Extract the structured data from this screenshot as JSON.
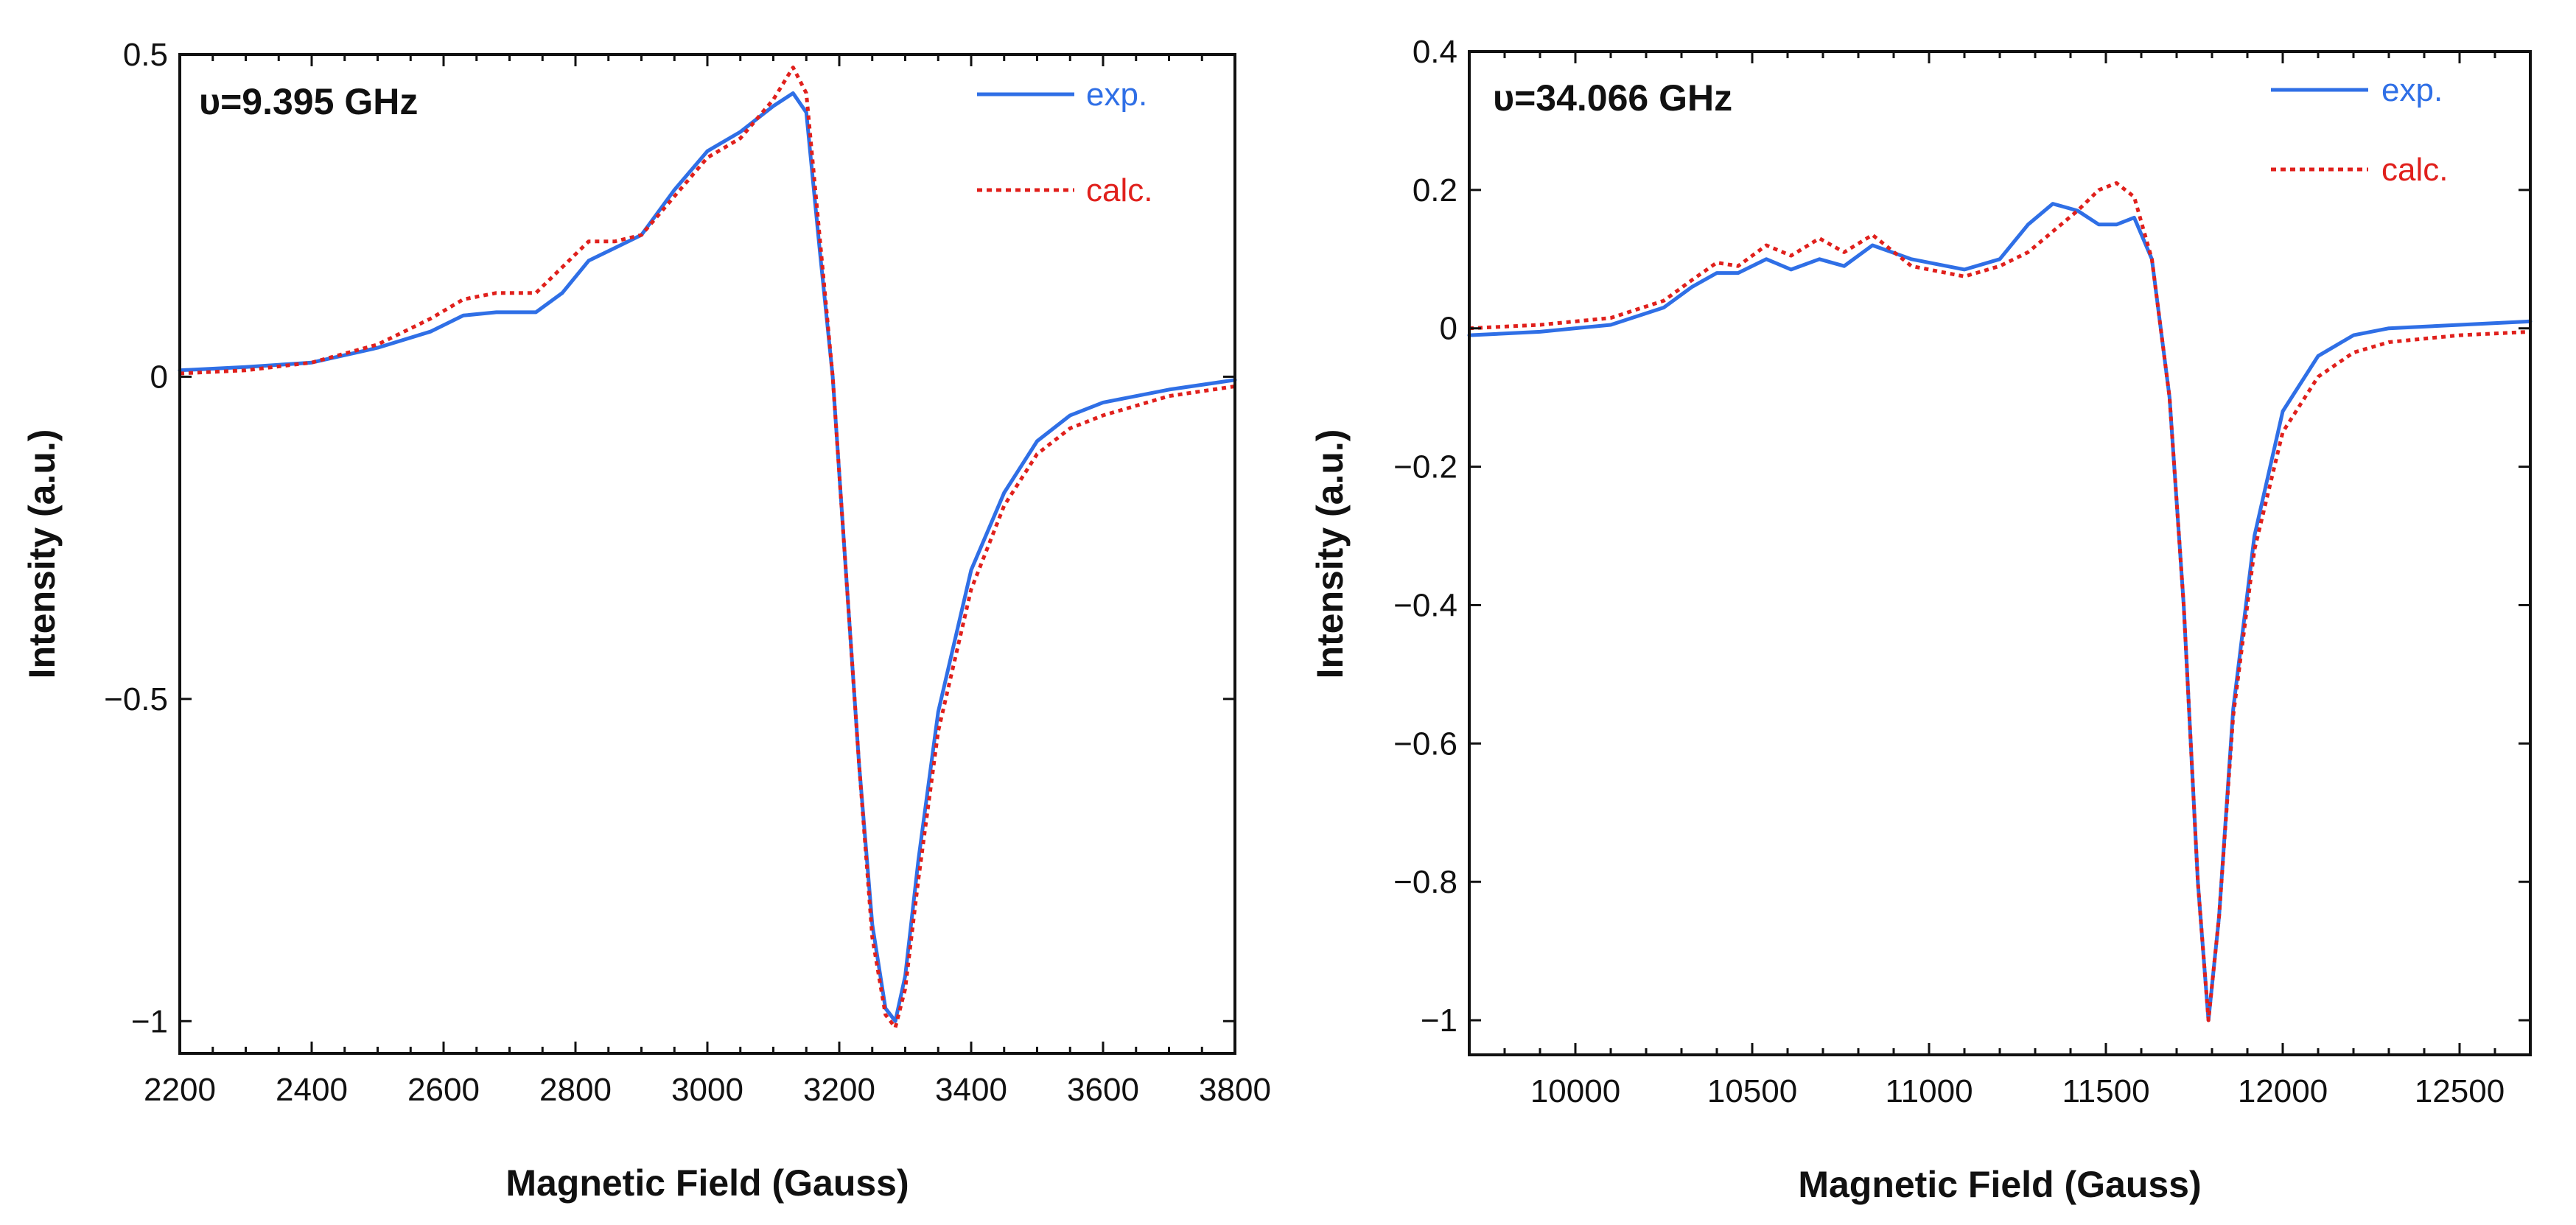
{
  "chart_data": [
    {
      "type": "line",
      "annotation": "υ=9.395 GHz",
      "xlabel": "Magnetic Field (Gauss)",
      "ylabel": "Intensity (a.u.)",
      "xlim": [
        2200,
        3800
      ],
      "ylim": [
        -1.05,
        0.5
      ],
      "xticks": [
        2200,
        2400,
        2600,
        2800,
        3000,
        3200,
        3400,
        3600,
        3800
      ],
      "xtick_labels": [
        "2200",
        "2400",
        "2600",
        "2800",
        "3000",
        "3200",
        "3400",
        "3600",
        "3800"
      ],
      "yticks": [
        0.5,
        0,
        -0.5,
        -1
      ],
      "ytick_labels": [
        "0.5",
        "0",
        "−0.5",
        "−1"
      ],
      "grid": false,
      "legend_position": "top-right",
      "series": [
        {
          "name": "exp.",
          "style": "solid",
          "color": "#2f6fe6",
          "x": [
            2200,
            2300,
            2400,
            2500,
            2580,
            2630,
            2680,
            2700,
            2740,
            2780,
            2820,
            2860,
            2900,
            2950,
            3000,
            3050,
            3100,
            3130,
            3150,
            3170,
            3190,
            3210,
            3230,
            3250,
            3270,
            3285,
            3300,
            3320,
            3350,
            3400,
            3450,
            3500,
            3550,
            3600,
            3700,
            3800
          ],
          "y": [
            0.01,
            0.015,
            0.022,
            0.045,
            0.07,
            0.095,
            0.1,
            0.1,
            0.1,
            0.13,
            0.18,
            0.2,
            0.22,
            0.29,
            0.35,
            0.38,
            0.42,
            0.44,
            0.41,
            0.2,
            0.0,
            -0.3,
            -0.6,
            -0.85,
            -0.98,
            -1.0,
            -0.93,
            -0.75,
            -0.52,
            -0.3,
            -0.18,
            -0.1,
            -0.06,
            -0.04,
            -0.02,
            -0.005
          ]
        },
        {
          "name": "calc.",
          "style": "dotted",
          "color": "#e0201c",
          "x": [
            2200,
            2300,
            2400,
            2500,
            2580,
            2630,
            2680,
            2700,
            2740,
            2780,
            2820,
            2860,
            2900,
            2950,
            3000,
            3050,
            3100,
            3130,
            3150,
            3170,
            3190,
            3210,
            3230,
            3250,
            3270,
            3285,
            3300,
            3320,
            3350,
            3400,
            3450,
            3500,
            3550,
            3600,
            3700,
            3800
          ],
          "y": [
            0.005,
            0.01,
            0.022,
            0.05,
            0.09,
            0.12,
            0.13,
            0.13,
            0.13,
            0.17,
            0.21,
            0.21,
            0.22,
            0.28,
            0.34,
            0.37,
            0.43,
            0.48,
            0.44,
            0.22,
            0.0,
            -0.3,
            -0.6,
            -0.87,
            -0.99,
            -1.01,
            -0.95,
            -0.78,
            -0.55,
            -0.33,
            -0.2,
            -0.12,
            -0.08,
            -0.06,
            -0.03,
            -0.015
          ]
        }
      ]
    },
    {
      "type": "line",
      "annotation": "υ=34.066 GHz",
      "xlabel": "Magnetic Field (Gauss)",
      "ylabel": "Intensity (a.u.)",
      "xlim": [
        9700,
        12700
      ],
      "ylim": [
        -1.05,
        0.4
      ],
      "xticks": [
        10000,
        10500,
        11000,
        11500,
        12000,
        12500
      ],
      "xtick_labels": [
        "10000",
        "10500",
        "11000",
        "11500",
        "12000",
        "12500"
      ],
      "yticks": [
        0.4,
        0.2,
        0,
        -0.2,
        -0.4,
        -0.6,
        -0.8,
        -1
      ],
      "ytick_labels": [
        "0.4",
        "0.2",
        "0",
        "−0.2",
        "−0.4",
        "−0.6",
        "−0.8",
        "−1"
      ],
      "grid": false,
      "legend_position": "top-right",
      "series": [
        {
          "name": "exp.",
          "style": "solid",
          "color": "#2f6fe6",
          "x": [
            9700,
            9900,
            10100,
            10250,
            10330,
            10400,
            10460,
            10540,
            10610,
            10690,
            10760,
            10840,
            10950,
            11100,
            11200,
            11280,
            11350,
            11420,
            11480,
            11530,
            11580,
            11630,
            11680,
            11720,
            11760,
            11790,
            11820,
            11860,
            11920,
            12000,
            12100,
            12200,
            12300,
            12500,
            12700
          ],
          "y": [
            -0.01,
            -0.005,
            0.005,
            0.03,
            0.06,
            0.08,
            0.08,
            0.1,
            0.085,
            0.1,
            0.09,
            0.12,
            0.1,
            0.085,
            0.1,
            0.15,
            0.18,
            0.17,
            0.15,
            0.15,
            0.16,
            0.1,
            -0.1,
            -0.4,
            -0.8,
            -1.0,
            -0.85,
            -0.55,
            -0.3,
            -0.12,
            -0.04,
            -0.01,
            0.0,
            0.005,
            0.01
          ]
        },
        {
          "name": "calc.",
          "style": "dotted",
          "color": "#e0201c",
          "x": [
            9700,
            9900,
            10100,
            10250,
            10330,
            10400,
            10460,
            10540,
            10610,
            10690,
            10760,
            10840,
            10950,
            11100,
            11200,
            11280,
            11350,
            11420,
            11480,
            11530,
            11580,
            11630,
            11680,
            11720,
            11760,
            11790,
            11820,
            11860,
            11920,
            12000,
            12100,
            12200,
            12300,
            12500,
            12700
          ],
          "y": [
            0.0,
            0.005,
            0.015,
            0.04,
            0.07,
            0.095,
            0.09,
            0.12,
            0.105,
            0.13,
            0.11,
            0.135,
            0.09,
            0.075,
            0.09,
            0.11,
            0.14,
            0.17,
            0.2,
            0.21,
            0.19,
            0.1,
            -0.1,
            -0.4,
            -0.8,
            -1.0,
            -0.85,
            -0.56,
            -0.32,
            -0.15,
            -0.07,
            -0.035,
            -0.02,
            -0.01,
            -0.005
          ]
        }
      ]
    }
  ]
}
